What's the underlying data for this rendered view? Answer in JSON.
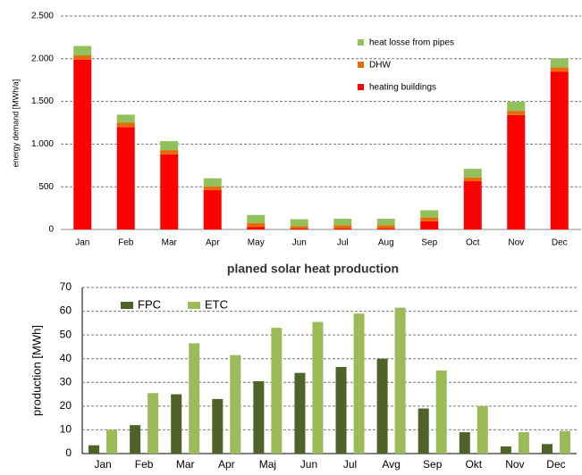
{
  "chart_data": [
    {
      "type": "bar",
      "stacked": true,
      "ylabel": "energy demand [MWh/a]",
      "categories": [
        "Jan",
        "Feb",
        "Mar",
        "Apr",
        "May",
        "Jun",
        "Jul",
        "Aug",
        "Sep",
        "Oct",
        "Nov",
        "Dec"
      ],
      "series": [
        {
          "name": "heating buildings",
          "color": "#ff0000",
          "values": [
            1990,
            1200,
            880,
            460,
            30,
            10,
            10,
            10,
            95,
            565,
            1340,
            1850
          ]
        },
        {
          "name": "DHW",
          "color": "#e46c0a",
          "values": [
            50,
            50,
            50,
            45,
            45,
            30,
            40,
            40,
            45,
            45,
            50,
            50
          ]
        },
        {
          "name": "heat losse from pipes",
          "color": "#92c05a",
          "values": [
            110,
            95,
            105,
            95,
            95,
            80,
            75,
            75,
            85,
            100,
            105,
            105
          ]
        }
      ],
      "ylim": [
        0,
        2500
      ],
      "yticks": [
        0,
        500,
        {
          "value": 1000,
          "label": "1.000"
        },
        {
          "value": 1500,
          "label": "1.500"
        },
        {
          "value": 2000,
          "label": "2.000"
        },
        {
          "value": 2500,
          "label": "2.500"
        }
      ],
      "grid": true
    },
    {
      "type": "bar",
      "stacked": false,
      "title": "planed solar heat production",
      "ylabel": "production [MWh]",
      "categories": [
        "Jan",
        "Feb",
        "Mar",
        "Apr",
        "Maj",
        "Jun",
        "Jul",
        "Avg",
        "Sep",
        "Okt",
        "Nov",
        "Dec"
      ],
      "series": [
        {
          "name": "FPC",
          "color": "#4f6228",
          "values": [
            3.5,
            12,
            25,
            23,
            30.5,
            34,
            36.5,
            40,
            19,
            9,
            3,
            4
          ]
        },
        {
          "name": "ETC",
          "color": "#9bbb59",
          "values": [
            10,
            25.5,
            46.5,
            41.5,
            53,
            55.5,
            59,
            61.5,
            35,
            20,
            9,
            9.5
          ]
        }
      ],
      "ylim": [
        0,
        70
      ],
      "yticks": [
        0,
        10,
        20,
        30,
        40,
        50,
        60,
        70
      ],
      "grid": true
    }
  ]
}
